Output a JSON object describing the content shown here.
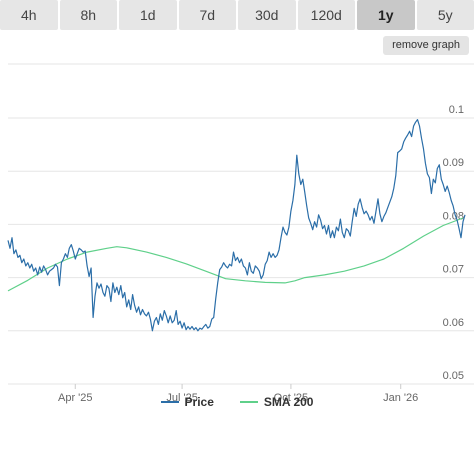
{
  "tabs": [
    {
      "label": "4h",
      "active": false
    },
    {
      "label": "8h",
      "active": false
    },
    {
      "label": "1d",
      "active": false
    },
    {
      "label": "7d",
      "active": false
    },
    {
      "label": "30d",
      "active": false
    },
    {
      "label": "120d",
      "active": false
    },
    {
      "label": "1y",
      "active": true
    },
    {
      "label": "5y",
      "active": false
    }
  ],
  "remove_graph_label": "remove graph",
  "colors": {
    "price": "#2b6ea8",
    "sma": "#5fd08a",
    "grid": "#e6e6e6",
    "axis_text": "#666666"
  },
  "chart_data": {
    "type": "line",
    "x_tick_labels": [
      "Apr '25",
      "Jul '25",
      "Oct '25",
      "Jan '26"
    ],
    "y_tick_labels": [
      "0.05",
      "0.06",
      "0.07",
      "0.08",
      "0.09",
      "0.1"
    ],
    "ylim": [
      0.05,
      0.1
    ],
    "grid": true,
    "legend_position": "bottom",
    "series": [
      {
        "name": "Price",
        "values": [
          [
            0,
            0.077
          ],
          [
            2,
            0.0755
          ],
          [
            4,
            0.0775
          ],
          [
            6,
            0.0745
          ],
          [
            8,
            0.0752
          ],
          [
            10,
            0.0738
          ],
          [
            12,
            0.0742
          ],
          [
            14,
            0.0728
          ],
          [
            16,
            0.0735
          ],
          [
            18,
            0.0722
          ],
          [
            20,
            0.0728
          ],
          [
            22,
            0.0718
          ],
          [
            24,
            0.0725
          ],
          [
            26,
            0.0712
          ],
          [
            28,
            0.0718
          ],
          [
            30,
            0.0705
          ],
          [
            32,
            0.072
          ],
          [
            34,
            0.071
          ],
          [
            36,
            0.0722
          ],
          [
            38,
            0.0715
          ],
          [
            40,
            0.0705
          ],
          [
            42,
            0.0712
          ],
          [
            44,
            0.0715
          ],
          [
            46,
            0.0718
          ],
          [
            48,
            0.0725
          ],
          [
            50,
            0.072
          ],
          [
            52,
            0.0685
          ],
          [
            54,
            0.0728
          ],
          [
            56,
            0.0735
          ],
          [
            58,
            0.0745
          ],
          [
            60,
            0.0738
          ],
          [
            62,
            0.0755
          ],
          [
            64,
            0.0762
          ],
          [
            66,
            0.075
          ],
          [
            68,
            0.0735
          ],
          [
            70,
            0.0745
          ],
          [
            72,
            0.0755
          ],
          [
            74,
            0.0752
          ],
          [
            76,
            0.0748
          ],
          [
            78,
            0.075
          ],
          [
            80,
            0.0722
          ],
          [
            82,
            0.0702
          ],
          [
            84,
            0.0718
          ],
          [
            86,
            0.0625
          ],
          [
            88,
            0.0665
          ],
          [
            90,
            0.069
          ],
          [
            92,
            0.068
          ],
          [
            94,
            0.0688
          ],
          [
            96,
            0.0672
          ],
          [
            98,
            0.0665
          ],
          [
            100,
            0.0685
          ],
          [
            102,
            0.068
          ],
          [
            104,
            0.0655
          ],
          [
            106,
            0.069
          ],
          [
            108,
            0.0672
          ],
          [
            110,
            0.0682
          ],
          [
            112,
            0.0668
          ],
          [
            114,
            0.0685
          ],
          [
            116,
            0.0662
          ],
          [
            118,
            0.0672
          ],
          [
            120,
            0.0645
          ],
          [
            122,
            0.0658
          ],
          [
            124,
            0.064
          ],
          [
            126,
            0.0668
          ],
          [
            128,
            0.0648
          ],
          [
            130,
            0.0635
          ],
          [
            132,
            0.0645
          ],
          [
            134,
            0.063
          ],
          [
            136,
            0.064
          ],
          [
            138,
            0.0632
          ],
          [
            140,
            0.0628
          ],
          [
            142,
            0.0635
          ],
          [
            144,
            0.0622
          ],
          [
            146,
            0.06
          ],
          [
            148,
            0.0618
          ],
          [
            150,
            0.0625
          ],
          [
            152,
            0.0612
          ],
          [
            154,
            0.0632
          ],
          [
            156,
            0.062
          ],
          [
            158,
            0.0638
          ],
          [
            160,
            0.0628
          ],
          [
            162,
            0.0615
          ],
          [
            164,
            0.0628
          ],
          [
            166,
            0.0615
          ],
          [
            168,
            0.062
          ],
          [
            170,
            0.0638
          ],
          [
            172,
            0.0612
          ],
          [
            174,
            0.0618
          ],
          [
            176,
            0.0605
          ],
          [
            178,
            0.0615
          ],
          [
            180,
            0.0602
          ],
          [
            182,
            0.0608
          ],
          [
            184,
            0.0603
          ],
          [
            186,
            0.0608
          ],
          [
            188,
            0.0602
          ],
          [
            190,
            0.0606
          ],
          [
            192,
            0.06
          ],
          [
            194,
            0.0605
          ],
          [
            196,
            0.0603
          ],
          [
            198,
            0.0608
          ],
          [
            200,
            0.0612
          ],
          [
            202,
            0.0605
          ],
          [
            204,
            0.0608
          ],
          [
            206,
            0.0622
          ],
          [
            208,
            0.0625
          ],
          [
            210,
            0.066
          ],
          [
            212,
            0.069
          ],
          [
            214,
            0.0715
          ],
          [
            216,
            0.072
          ],
          [
            218,
            0.0728
          ],
          [
            220,
            0.0722
          ],
          [
            222,
            0.0718
          ],
          [
            224,
            0.0725
          ],
          [
            226,
            0.0722
          ],
          [
            228,
            0.0748
          ],
          [
            230,
            0.0732
          ],
          [
            232,
            0.0738
          ],
          [
            234,
            0.0728
          ],
          [
            236,
            0.0735
          ],
          [
            238,
            0.0722
          ],
          [
            240,
            0.0718
          ],
          [
            242,
            0.0705
          ],
          [
            244,
            0.0728
          ],
          [
            246,
            0.0712
          ],
          [
            248,
            0.0708
          ],
          [
            250,
            0.0722
          ],
          [
            252,
            0.0718
          ],
          [
            254,
            0.0712
          ],
          [
            256,
            0.0698
          ],
          [
            258,
            0.0705
          ],
          [
            260,
            0.0725
          ],
          [
            262,
            0.0732
          ],
          [
            264,
            0.0748
          ],
          [
            266,
            0.0738
          ],
          [
            268,
            0.0745
          ],
          [
            270,
            0.0738
          ],
          [
            272,
            0.0742
          ],
          [
            274,
            0.0752
          ],
          [
            276,
            0.0775
          ],
          [
            278,
            0.0795
          ],
          [
            280,
            0.0785
          ],
          [
            282,
            0.078
          ],
          [
            284,
            0.0795
          ],
          [
            286,
            0.0825
          ],
          [
            288,
            0.0845
          ],
          [
            290,
            0.0875
          ],
          [
            292,
            0.093
          ],
          [
            294,
            0.0895
          ],
          [
            296,
            0.0875
          ],
          [
            298,
            0.0885
          ],
          [
            300,
            0.086
          ],
          [
            302,
            0.0835
          ],
          [
            304,
            0.0812
          ],
          [
            306,
            0.0802
          ],
          [
            308,
            0.079
          ],
          [
            310,
            0.0805
          ],
          [
            312,
            0.0795
          ],
          [
            314,
            0.0818
          ],
          [
            316,
            0.0808
          ],
          [
            318,
            0.0792
          ],
          [
            320,
            0.0798
          ],
          [
            322,
            0.0782
          ],
          [
            324,
            0.0798
          ],
          [
            326,
            0.0775
          ],
          [
            328,
            0.0788
          ],
          [
            330,
            0.0775
          ],
          [
            332,
            0.0795
          ],
          [
            334,
            0.0788
          ],
          [
            336,
            0.081
          ],
          [
            338,
            0.0785
          ],
          [
            340,
            0.0775
          ],
          [
            342,
            0.0792
          ],
          [
            344,
            0.0788
          ],
          [
            346,
            0.0778
          ],
          [
            348,
            0.0805
          ],
          [
            350,
            0.083
          ],
          [
            352,
            0.0815
          ],
          [
            354,
            0.0838
          ],
          [
            356,
            0.0848
          ],
          [
            358,
            0.0832
          ],
          [
            360,
            0.082
          ],
          [
            362,
            0.0825
          ],
          [
            364,
            0.0818
          ],
          [
            366,
            0.0808
          ],
          [
            368,
            0.0815
          ],
          [
            370,
            0.0802
          ],
          [
            372,
            0.0825
          ],
          [
            374,
            0.0848
          ],
          [
            376,
            0.082
          ],
          [
            378,
            0.0805
          ],
          [
            380,
            0.0815
          ],
          [
            382,
            0.0822
          ],
          [
            384,
            0.0832
          ],
          [
            386,
            0.0842
          ],
          [
            388,
            0.0852
          ],
          [
            390,
            0.0868
          ],
          [
            392,
            0.0892
          ],
          [
            394,
            0.0935
          ],
          [
            396,
            0.0938
          ],
          [
            398,
            0.0942
          ],
          [
            400,
            0.0955
          ],
          [
            402,
            0.0962
          ],
          [
            404,
            0.0968
          ],
          [
            406,
            0.0975
          ],
          [
            408,
            0.0965
          ],
          [
            410,
            0.0985
          ],
          [
            412,
            0.0992
          ],
          [
            414,
            0.0997
          ],
          [
            416,
            0.0985
          ],
          [
            418,
            0.0962
          ],
          [
            420,
            0.0942
          ],
          [
            422,
            0.0915
          ],
          [
            424,
            0.0895
          ],
          [
            426,
            0.0888
          ],
          [
            428,
            0.0858
          ],
          [
            430,
            0.0885
          ],
          [
            432,
            0.0878
          ],
          [
            434,
            0.0905
          ],
          [
            436,
            0.0912
          ],
          [
            438,
            0.0885
          ],
          [
            440,
            0.0875
          ],
          [
            442,
            0.0862
          ],
          [
            444,
            0.0872
          ],
          [
            446,
            0.086
          ],
          [
            448,
            0.0845
          ],
          [
            450,
            0.0835
          ],
          [
            452,
            0.0818
          ],
          [
            454,
            0.0808
          ],
          [
            456,
            0.0792
          ],
          [
            458,
            0.0775
          ],
          [
            460,
            0.0805
          ],
          [
            462,
            0.0818
          ]
        ]
      },
      {
        "name": "SMA 200",
        "values": [
          [
            0,
            0.0675
          ],
          [
            20,
            0.0695
          ],
          [
            40,
            0.0718
          ],
          [
            60,
            0.0735
          ],
          [
            80,
            0.0748
          ],
          [
            100,
            0.0755
          ],
          [
            110,
            0.0758
          ],
          [
            120,
            0.0756
          ],
          [
            140,
            0.0748
          ],
          [
            160,
            0.0738
          ],
          [
            180,
            0.0726
          ],
          [
            200,
            0.0712
          ],
          [
            220,
            0.0698
          ],
          [
            240,
            0.0694
          ],
          [
            260,
            0.0691
          ],
          [
            280,
            0.069
          ],
          [
            290,
            0.0694
          ],
          [
            300,
            0.07
          ],
          [
            320,
            0.0705
          ],
          [
            340,
            0.0712
          ],
          [
            360,
            0.0722
          ],
          [
            380,
            0.0735
          ],
          [
            400,
            0.0755
          ],
          [
            420,
            0.0778
          ],
          [
            440,
            0.0798
          ],
          [
            460,
            0.0812
          ]
        ]
      }
    ]
  }
}
